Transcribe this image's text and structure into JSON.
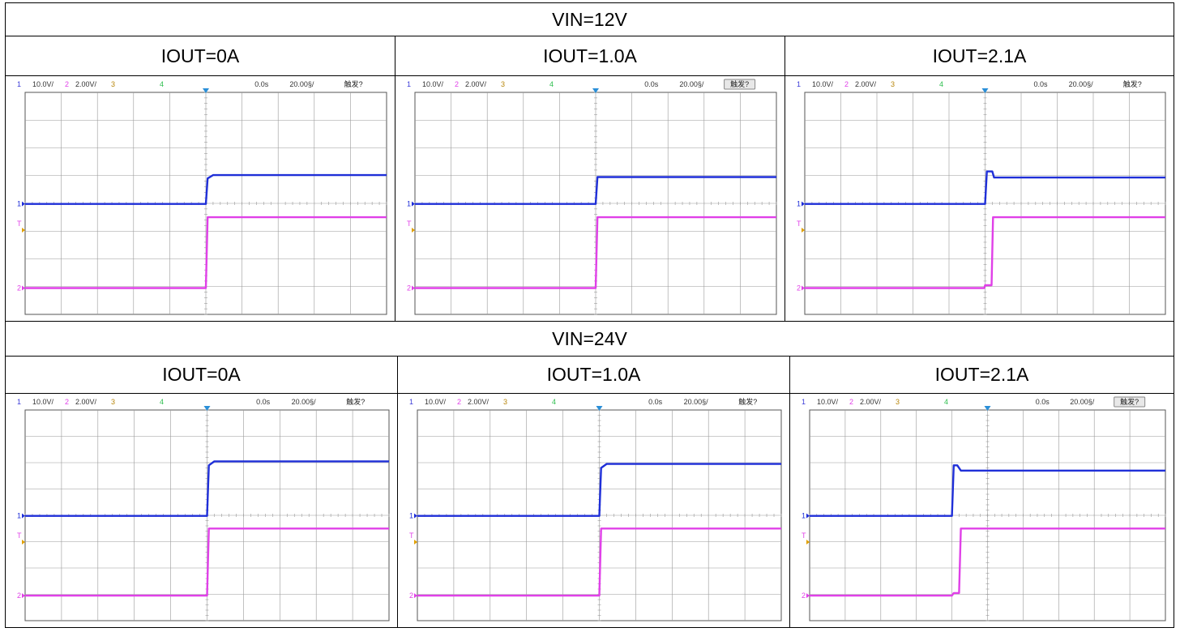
{
  "sections": [
    {
      "title": "VIN=12V",
      "panels": [
        {
          "title": "IOUT=0A",
          "trigger_button": false
        },
        {
          "title": "IOUT=1.0A",
          "trigger_button": true
        },
        {
          "title": "IOUT=2.1A",
          "trigger_button": false
        }
      ]
    },
    {
      "title": "VIN=24V",
      "panels": [
        {
          "title": "IOUT=0A",
          "trigger_button": false
        },
        {
          "title": "IOUT=1.0A",
          "trigger_button": false
        },
        {
          "title": "IOUT=2.1A",
          "trigger_button": true
        }
      ]
    }
  ],
  "scope_status": {
    "ch1_num": "1",
    "ch1_scale": "10.0V/",
    "ch2_num": "2",
    "ch2_scale": "2.00V/",
    "ch3_num": "3",
    "ch4_num": "4",
    "time_offset": "0.0s",
    "time_scale": "20.00§/",
    "trigger": "触发?",
    "ch1_marker": "1",
    "ch2_marker": "2",
    "trigger_marker": "T"
  },
  "colors": {
    "ch1": "#1f2fd8",
    "ch2": "#e040e8",
    "ch3": "#b8860b",
    "ch4": "#2fbf4f",
    "grid": "#9a9a9a",
    "status_num": "#3a3ad8"
  },
  "chart_data": [
    {
      "type": "line",
      "title": "VIN=12V, IOUT=0A",
      "x_unit": "div",
      "y_unit": "div",
      "xlim": [
        0,
        10
      ],
      "ylim": [
        0,
        8
      ],
      "series": [
        {
          "name": "1",
          "x": [
            0,
            5.0,
            5.05,
            5.2,
            10
          ],
          "y": [
            3.98,
            3.98,
            4.9,
            5.02,
            5.02
          ]
        },
        {
          "name": "2",
          "x": [
            0,
            5.0,
            5.05,
            10
          ],
          "y": [
            0.95,
            0.95,
            3.5,
            3.5
          ]
        }
      ]
    },
    {
      "type": "line",
      "title": "VIN=12V, IOUT=1.0A",
      "x_unit": "div",
      "y_unit": "div",
      "xlim": [
        0,
        10
      ],
      "ylim": [
        0,
        8
      ],
      "series": [
        {
          "name": "1",
          "x": [
            0,
            5.0,
            5.05,
            10
          ],
          "y": [
            3.98,
            3.98,
            4.95,
            4.95
          ]
        },
        {
          "name": "2",
          "x": [
            0,
            5.0,
            5.05,
            10
          ],
          "y": [
            0.95,
            0.95,
            3.5,
            3.5
          ]
        }
      ]
    },
    {
      "type": "line",
      "title": "VIN=12V, IOUT=2.1A",
      "x_unit": "div",
      "y_unit": "div",
      "xlim": [
        0,
        10
      ],
      "ylim": [
        0,
        8
      ],
      "series": [
        {
          "name": "1",
          "x": [
            0,
            5.0,
            5.05,
            5.2,
            5.25,
            10
          ],
          "y": [
            3.98,
            3.98,
            5.15,
            5.15,
            4.93,
            4.93
          ]
        },
        {
          "name": "2",
          "x": [
            0,
            4.98,
            5.0,
            5.18,
            5.22,
            10
          ],
          "y": [
            0.95,
            0.95,
            1.05,
            1.05,
            3.5,
            3.5
          ]
        }
      ]
    },
    {
      "type": "line",
      "title": "VIN=24V, IOUT=0A",
      "x_unit": "div",
      "y_unit": "div",
      "xlim": [
        0,
        10
      ],
      "ylim": [
        0,
        8
      ],
      "series": [
        {
          "name": "1",
          "x": [
            0,
            5.0,
            5.05,
            5.2,
            10
          ],
          "y": [
            3.98,
            3.98,
            5.9,
            6.05,
            6.05
          ]
        },
        {
          "name": "2",
          "x": [
            0,
            5.0,
            5.05,
            10
          ],
          "y": [
            0.95,
            0.95,
            3.5,
            3.5
          ]
        }
      ]
    },
    {
      "type": "line",
      "title": "VIN=24V, IOUT=1.0A",
      "x_unit": "div",
      "y_unit": "div",
      "xlim": [
        0,
        10
      ],
      "ylim": [
        0,
        8
      ],
      "series": [
        {
          "name": "1",
          "x": [
            0,
            5.0,
            5.05,
            5.2,
            10
          ],
          "y": [
            3.98,
            3.98,
            5.8,
            5.95,
            5.95
          ]
        },
        {
          "name": "2",
          "x": [
            0,
            5.0,
            5.05,
            10
          ],
          "y": [
            0.95,
            0.95,
            3.5,
            3.5
          ]
        }
      ]
    },
    {
      "type": "line",
      "title": "VIN=24V, IOUT=2.1A",
      "x_unit": "div",
      "y_unit": "div",
      "xlim": [
        0,
        10
      ],
      "ylim": [
        0,
        8
      ],
      "series": [
        {
          "name": "1",
          "x": [
            0,
            4.0,
            4.05,
            4.15,
            4.25,
            10
          ],
          "y": [
            3.98,
            3.98,
            5.9,
            5.9,
            5.7,
            5.7
          ]
        },
        {
          "name": "2",
          "x": [
            0,
            4.0,
            4.05,
            4.2,
            4.25,
            10
          ],
          "y": [
            0.95,
            0.95,
            1.05,
            1.05,
            3.5,
            3.5
          ]
        }
      ]
    }
  ]
}
